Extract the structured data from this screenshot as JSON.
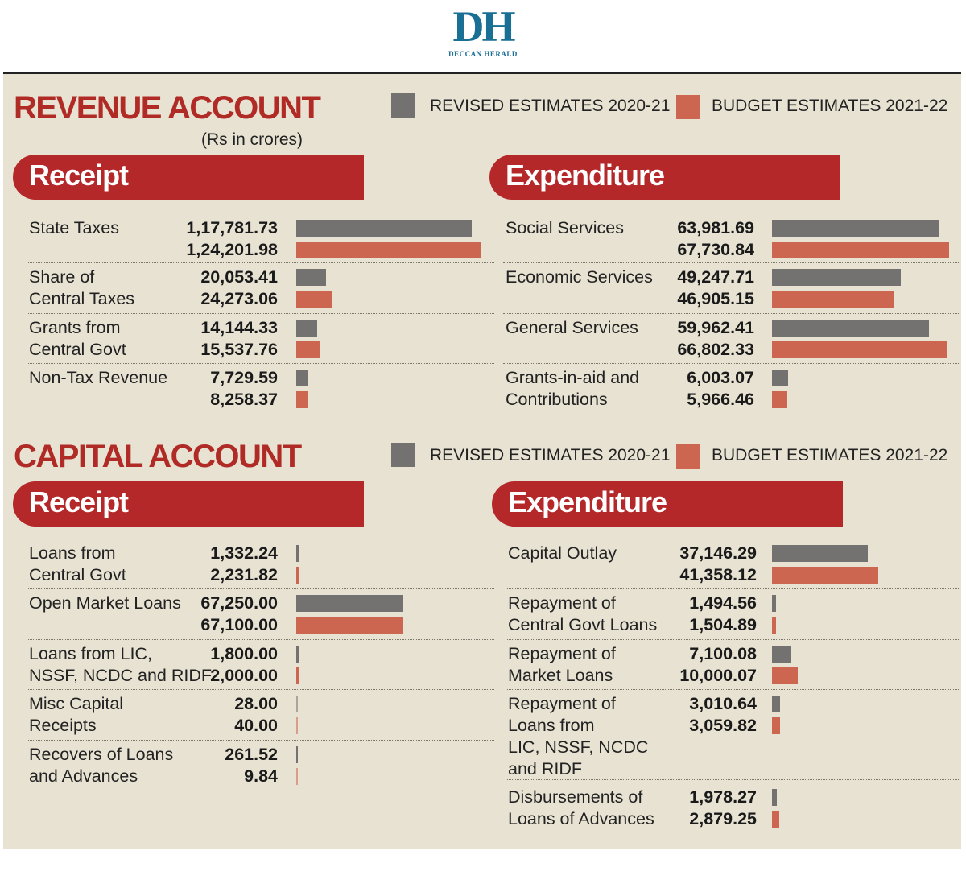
{
  "logo": {
    "mark": "DH",
    "name": "DECCAN HERALD"
  },
  "colors": {
    "revised": "#737270",
    "budget": "#cc6650",
    "accent": "#b02a26",
    "banner": "#b4282a"
  },
  "legend": {
    "revised": "REVISED ESTIMATES 2020-21",
    "budget": "BUDGET ESTIMATES 2021-22"
  },
  "revenue": {
    "title": "REVENUE ACCOUNT",
    "units": "(Rs in crores)"
  },
  "capital": {
    "title": "CAPITAL ACCOUNT"
  },
  "chart_data": [
    {
      "type": "bar",
      "title": "Receipt",
      "categories": [
        "State Taxes",
        "Share of\nCentral Taxes",
        "Grants from\nCentral Govt",
        "Non-Tax Revenue"
      ],
      "series": [
        {
          "name": "REVISED ESTIMATES 2020-21",
          "values": [
            "1,17,781.73",
            "20,053.41",
            "14,144.33",
            "7,729.59"
          ]
        },
        {
          "name": "BUDGET ESTIMATES 2021-22",
          "values": [
            "1,24,201.98",
            "24,273.06",
            "15,537.76",
            "8,258.37"
          ]
        }
      ]
    },
    {
      "type": "bar",
      "title": "Expenditure",
      "categories": [
        "Social Services",
        "Economic Services",
        "General Services",
        "Grants-in-aid and\nContributions"
      ],
      "series": [
        {
          "name": "REVISED ESTIMATES 2020-21",
          "values": [
            "63,981.69",
            "49,247.71",
            "59,962.41",
            "6,003.07"
          ]
        },
        {
          "name": "BUDGET ESTIMATES 2021-22",
          "values": [
            "67,730.84",
            "46,905.15",
            "66,802.33",
            "5,966.46"
          ]
        }
      ]
    },
    {
      "type": "bar",
      "title": "Receipt",
      "categories": [
        "Loans from\nCentral Govt",
        "Open Market Loans",
        "Loans from LIC,\nNSSF, NCDC and RIDF",
        "Misc Capital\nReceipts",
        "Recovers of Loans\nand Advances"
      ],
      "series": [
        {
          "name": "REVISED ESTIMATES 2020-21",
          "values": [
            "1,332.24",
            "67,250.00",
            "1,800.00",
            "28.00",
            "261.52"
          ]
        },
        {
          "name": "BUDGET ESTIMATES 2021-22",
          "values": [
            "2,231.82",
            "67,100.00",
            "2,000.00",
            "40.00",
            "9.84"
          ]
        }
      ]
    },
    {
      "type": "bar",
      "title": "Expenditure",
      "categories": [
        "Capital Outlay",
        "Repayment of\nCentral Govt Loans",
        "Repayment of\nMarket Loans",
        "Repayment of\nLoans from\nLIC, NSSF, NCDC\nand RIDF",
        "Disbursements of\nLoans of Advances"
      ],
      "series": [
        {
          "name": "REVISED ESTIMATES 2020-21",
          "values": [
            "37,146.29",
            "1,494.56",
            "7,100.08",
            "3,010.64",
            "1,978.27"
          ]
        },
        {
          "name": "BUDGET ESTIMATES 2021-22",
          "values": [
            "41,358.12",
            "1,504.89",
            "10,000.07",
            "3,059.82",
            "2,879.25"
          ]
        }
      ]
    }
  ]
}
